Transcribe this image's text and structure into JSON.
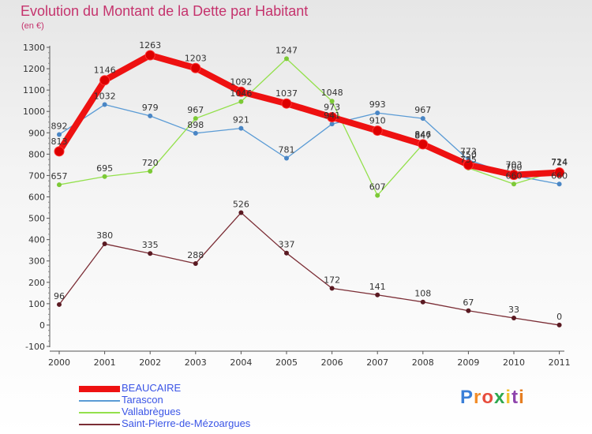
{
  "header": {
    "title": "Evolution du Montant de la Dette par Habitant",
    "subtitle": "(en €)"
  },
  "logo": {
    "text": "Proxiti"
  },
  "colors": {
    "title": "#c5336d",
    "legend_text": "#3b55e6"
  },
  "chart_data": {
    "type": "line",
    "title": "Evolution du Montant de la Dette par Habitant",
    "subtitle": "(en €)",
    "xlabel": "",
    "ylabel": "",
    "categories": [
      "2000",
      "2001",
      "2002",
      "2003",
      "2004",
      "2005",
      "2006",
      "2007",
      "2008",
      "2009",
      "2010",
      "2011"
    ],
    "ylim": [
      -100,
      1300
    ],
    "yticks": [
      -100,
      0,
      100,
      200,
      300,
      400,
      500,
      600,
      700,
      800,
      900,
      1000,
      1100,
      1200,
      1300
    ],
    "grid": false,
    "legend_position": "bottom-left",
    "series": [
      {
        "name": "Tarascon",
        "color": "#5a9bd5",
        "marker": "#4a86c5",
        "values": [
          892,
          1032,
          979,
          898,
          921,
          781,
          941,
          993,
          967,
          773,
          700,
          660
        ],
        "labels": [
          "892",
          "1032",
          "979",
          "898",
          "921",
          "781",
          "941",
          "993",
          "967",
          "773",
          "700",
          "660"
        ]
      },
      {
        "name": "Vallabrègues",
        "color": "#93e04b",
        "marker": "#7cc936",
        "values": [
          657,
          695,
          720,
          967,
          1046,
          1247,
          1048,
          607,
          847,
          735,
          660,
          724
        ],
        "labels": [
          "657",
          "695",
          "720",
          "967",
          "1046",
          "1247",
          "1048",
          "607",
          "847",
          "735",
          "660",
          "724"
        ]
      },
      {
        "name": "Saint-Pierre-de-Mézoargues",
        "color": "#7b2d35",
        "marker": "#5a1a22",
        "values": [
          96,
          380,
          335,
          288,
          526,
          337,
          172,
          141,
          108,
          67,
          33,
          0
        ],
        "labels": [
          "96",
          "380",
          "335",
          "288",
          "526",
          "337",
          "172",
          "141",
          "108",
          "67",
          "33",
          "0"
        ]
      },
      {
        "name": "BEAUCAIRE",
        "color": "#ee1111",
        "marker": "#dd0000",
        "values": [
          813,
          1146,
          1263,
          1203,
          1092,
          1037,
          973,
          910,
          846,
          750,
          703,
          714
        ],
        "labels": [
          "813",
          "1146",
          "1263",
          "1203",
          "1092",
          "1037",
          "973",
          "910",
          "846",
          "750",
          "703",
          "714"
        ]
      }
    ]
  },
  "legend": [
    {
      "name": "BEAUCAIRE",
      "color": "#ee1111",
      "thickness": 8
    },
    {
      "name": "Tarascon",
      "color": "#5a9bd5",
      "thickness": 2
    },
    {
      "name": "Vallabrègues",
      "color": "#93e04b",
      "thickness": 2
    },
    {
      "name": "Saint-Pierre-de-Mézoargues",
      "color": "#7b2d35",
      "thickness": 2
    }
  ]
}
